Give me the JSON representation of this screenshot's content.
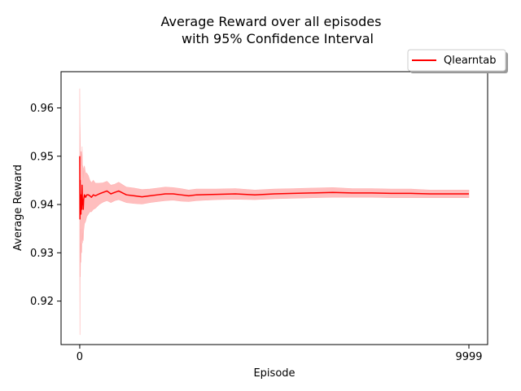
{
  "chart_data": {
    "type": "line",
    "title_line1": "Average Reward over all episodes",
    "title_line2": "with 95% Confidence Interval",
    "xlabel": "Episode",
    "ylabel": "Average Reward",
    "xlim": [
      -480,
      10480
    ],
    "ylim": [
      0.911,
      0.9675
    ],
    "x_ticks": [
      0,
      9999
    ],
    "x_tick_labels": [
      "0",
      "9999"
    ],
    "y_ticks": [
      0.92,
      0.93,
      0.94,
      0.95,
      0.96
    ],
    "y_tick_labels": [
      "0.92",
      "0.93",
      "0.94",
      "0.95",
      "0.96"
    ],
    "legend_position": "upper-right-outside",
    "colors": {
      "line": "#ff0000",
      "band": "#ffb3b3"
    },
    "series": [
      {
        "name": "Qlearntab",
        "x": [
          0,
          5,
          10,
          15,
          20,
          25,
          30,
          40,
          50,
          60,
          70,
          80,
          90,
          100,
          120,
          150,
          180,
          220,
          260,
          300,
          350,
          400,
          500,
          600,
          700,
          800,
          900,
          1000,
          1200,
          1400,
          1600,
          1800,
          2000,
          2200,
          2400,
          2600,
          2800,
          3000,
          3500,
          4000,
          4500,
          5000,
          5500,
          6000,
          6500,
          7000,
          7500,
          8000,
          8500,
          9000,
          9500,
          9999
        ],
        "y": [
          0.95,
          0.937,
          0.945,
          0.938,
          0.94,
          0.942,
          0.938,
          0.942,
          0.939,
          0.944,
          0.94,
          0.941,
          0.939,
          0.941,
          0.942,
          0.9415,
          0.942,
          0.942,
          0.9418,
          0.9415,
          0.942,
          0.9418,
          0.9422,
          0.9425,
          0.9428,
          0.9422,
          0.9425,
          0.9428,
          0.942,
          0.9418,
          0.9416,
          0.9418,
          0.942,
          0.9422,
          0.9422,
          0.942,
          0.9418,
          0.942,
          0.9421,
          0.9422,
          0.942,
          0.9422,
          0.9423,
          0.9424,
          0.9425,
          0.9424,
          0.9424,
          0.9423,
          0.9423,
          0.9422,
          0.9422,
          0.9422
        ],
        "lower": [
          0.93,
          0.913,
          0.935,
          0.925,
          0.929,
          0.932,
          0.928,
          0.932,
          0.93,
          0.935,
          0.932,
          0.934,
          0.9325,
          0.9345,
          0.936,
          0.9365,
          0.9375,
          0.938,
          0.9385,
          0.9385,
          0.939,
          0.9392,
          0.94,
          0.9405,
          0.9408,
          0.9404,
          0.9408,
          0.941,
          0.9404,
          0.9402,
          0.9401,
          0.9404,
          0.9406,
          0.9408,
          0.9409,
          0.9407,
          0.9406,
          0.9408,
          0.941,
          0.9411,
          0.941,
          0.9412,
          0.9413,
          0.9414,
          0.9415,
          0.9415,
          0.9415,
          0.9414,
          0.9414,
          0.9414,
          0.9414,
          0.9414
        ],
        "upper": [
          0.964,
          0.957,
          0.955,
          0.951,
          0.95,
          0.951,
          0.948,
          0.951,
          0.948,
          0.952,
          0.948,
          0.948,
          0.9455,
          0.9475,
          0.948,
          0.9465,
          0.9465,
          0.946,
          0.945,
          0.9445,
          0.945,
          0.9444,
          0.9444,
          0.9445,
          0.9448,
          0.944,
          0.9442,
          0.9446,
          0.9436,
          0.9434,
          0.9431,
          0.9432,
          0.9434,
          0.9436,
          0.9435,
          0.9433,
          0.943,
          0.9432,
          0.9432,
          0.9433,
          0.943,
          0.9432,
          0.9433,
          0.9434,
          0.9435,
          0.9433,
          0.9433,
          0.9432,
          0.9432,
          0.943,
          0.943,
          0.943
        ]
      }
    ]
  }
}
